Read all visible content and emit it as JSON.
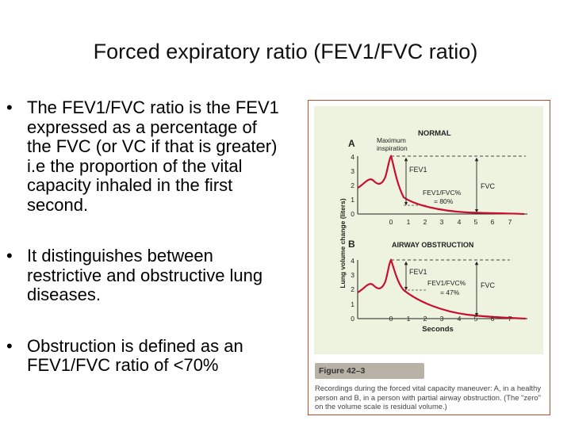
{
  "slide": {
    "title": "Forced expiratory ratio (FEV1/FVC ratio)",
    "bullets": [
      "The FEV1/FVC ratio is the FEV1 expressed as a percentage of the FVC (or VC if that is greater) i.e the proportion of the vital capacity inhaled in the first second.",
      "It distinguishes between restrictive and obstructive lung diseases.",
      "Obstruction is defined as an FEV1/FVC ratio of <70%"
    ]
  },
  "figure": {
    "ylabel": "Lung volume change (liters)",
    "xlabel": "Seconds",
    "panel_a": {
      "letter": "A",
      "title": "NORMAL",
      "annotation": "Maximum inspiration",
      "fev1_label": "FEV1",
      "fvc_label": "FVC",
      "ratio_label": "FEV1/FVC%",
      "ratio_value": "= 80%"
    },
    "panel_b": {
      "letter": "B",
      "title": "AIRWAY OBSTRUCTION",
      "fev1_label": "FEV1",
      "fvc_label": "FVC",
      "ratio_label": "FEV1/FVC%",
      "ratio_value": "= 47%"
    },
    "y_ticks": [
      "0",
      "1",
      "2",
      "3",
      "4"
    ],
    "x_ticks": [
      "0",
      "1",
      "2",
      "3",
      "4",
      "5",
      "6",
      "7"
    ],
    "caption_label": "Figure 42–3",
    "caption_text": "Recordings during the forced vital capacity maneuver: A, in a healthy person and B, in a person with partial airway obstruction. (The \"zero\" on the volume scale is residual volume.)",
    "colors": {
      "panel_bg": "#eef3df",
      "curve": "#c8102e",
      "border": "#c84a2c",
      "caption_label_bg": "#b9b2a7"
    }
  }
}
